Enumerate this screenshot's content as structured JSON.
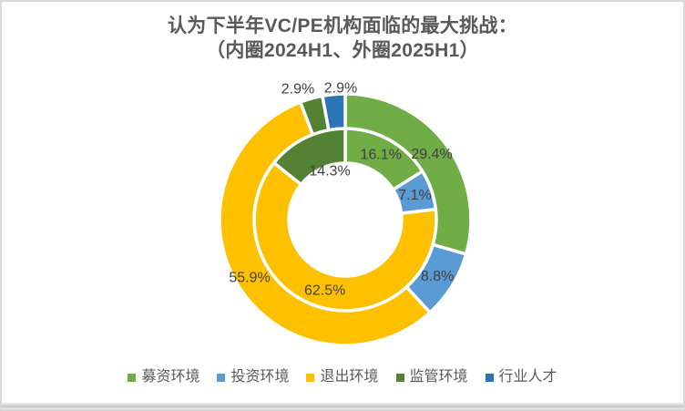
{
  "title": {
    "line1": "认为下半年VC/PE机构面临的最大挑战：",
    "line2": "（内圈2024H1、外圈2025H1）"
  },
  "chart_data": {
    "type": "pie",
    "variant": "double-ring-doughnut",
    "title": "认为下半年VC/PE机构面临的最大挑战：（内圈2024H1、外圈2025H1）",
    "categories": [
      "募资环境",
      "投资环境",
      "退出环境",
      "监管环境",
      "行业人才"
    ],
    "colors": [
      "#70AD47",
      "#5B9BD5",
      "#FFC000",
      "#548235",
      "#2E75B6"
    ],
    "series": [
      {
        "name": "2024H1",
        "ring": "inner",
        "values": [
          16.1,
          7.1,
          62.5,
          14.3,
          0
        ]
      },
      {
        "name": "2025H1",
        "ring": "outer",
        "values": [
          29.4,
          8.8,
          55.9,
          2.9,
          2.9
        ]
      }
    ],
    "label_format": "{value}%",
    "legend_position": "bottom",
    "layout": {
      "center": [
        379,
        241
      ],
      "inner_ring_radii": [
        62,
        100
      ],
      "outer_ring_radii": [
        100,
        138
      ],
      "separator_color": "#FFFFFF",
      "separator_width": 3.5,
      "label_color": "#404040",
      "label_font_size": 16,
      "label_overrides": {
        "inner": {
          "3": [
            362,
            188
          ]
        },
        "outer": {
          "2": [
            274,
            305
          ],
          "3": [
            327,
            98
          ],
          "4": [
            374,
            97
          ]
        }
      }
    }
  },
  "legend": {
    "items": [
      {
        "label": "募资环境",
        "color": "#70AD47"
      },
      {
        "label": "投资环境",
        "color": "#5B9BD5"
      },
      {
        "label": "退出环境",
        "color": "#FFC000"
      },
      {
        "label": "监管环境",
        "color": "#548235"
      },
      {
        "label": "行业人才",
        "color": "#2E75B6"
      }
    ]
  },
  "text_colors": {
    "title": "#595959",
    "legend": "#595959"
  }
}
